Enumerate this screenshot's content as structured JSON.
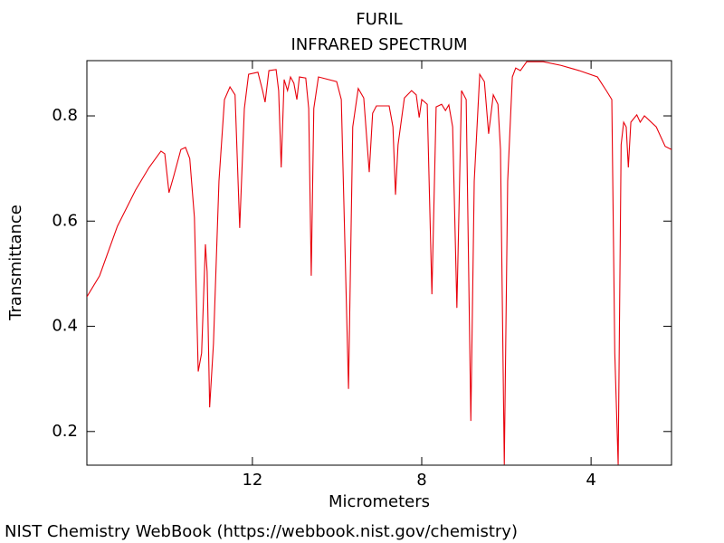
{
  "chart_data": {
    "type": "line",
    "title": "FURIL",
    "subtitle": "INFRARED SPECTRUM",
    "x_label": "Micrometers",
    "y_label": "Transmittance",
    "source": "NIST Chemistry WebBook (https://webbook.nist.gov/chemistry)",
    "xlim": [
      15.91,
      2.1
    ],
    "ylim": [
      0.136,
      0.905
    ],
    "xticks": [
      12,
      8,
      4
    ],
    "yticks": [
      0.2,
      0.4,
      0.6,
      0.8
    ],
    "grid": false,
    "series": [
      {
        "name": "Transmittance",
        "color": "#e8000b",
        "x": [
          15.91,
          15.61,
          15.19,
          14.76,
          14.44,
          14.16,
          14.07,
          13.97,
          13.86,
          13.69,
          13.58,
          13.48,
          13.37,
          13.28,
          13.2,
          13.11,
          13.07,
          13.01,
          12.92,
          12.79,
          12.66,
          12.53,
          12.41,
          12.3,
          12.19,
          12.09,
          11.87,
          11.76,
          11.7,
          11.61,
          11.44,
          11.38,
          11.32,
          11.25,
          11.17,
          11.1,
          11.02,
          10.95,
          10.89,
          10.74,
          10.67,
          10.61,
          10.55,
          10.44,
          10.01,
          9.9,
          9.73,
          9.63,
          9.5,
          9.37,
          9.24,
          9.16,
          9.07,
          8.77,
          8.68,
          8.62,
          8.56,
          8.41,
          8.24,
          8.13,
          8.06,
          8.0,
          7.87,
          7.76,
          7.66,
          7.53,
          7.44,
          7.36,
          7.27,
          7.17,
          7.06,
          6.95,
          6.84,
          6.76,
          6.63,
          6.52,
          6.42,
          6.31,
          6.2,
          6.14,
          6.05,
          5.97,
          5.86,
          5.78,
          5.67,
          5.52,
          5.13,
          4.71,
          4.28,
          3.85,
          3.64,
          3.51,
          3.44,
          3.36,
          3.29,
          3.23,
          3.17,
          3.12,
          3.06,
          2.92,
          2.84,
          2.74,
          2.46,
          2.25,
          2.1
        ],
        "values": [
          0.456,
          0.496,
          0.59,
          0.659,
          0.702,
          0.733,
          0.728,
          0.654,
          0.685,
          0.736,
          0.74,
          0.719,
          0.607,
          0.314,
          0.349,
          0.556,
          0.504,
          0.246,
          0.367,
          0.676,
          0.831,
          0.855,
          0.84,
          0.587,
          0.814,
          0.879,
          0.883,
          0.848,
          0.826,
          0.886,
          0.888,
          0.848,
          0.702,
          0.869,
          0.848,
          0.874,
          0.862,
          0.831,
          0.874,
          0.872,
          0.814,
          0.496,
          0.814,
          0.874,
          0.865,
          0.831,
          0.281,
          0.779,
          0.852,
          0.834,
          0.693,
          0.805,
          0.819,
          0.819,
          0.779,
          0.65,
          0.745,
          0.834,
          0.848,
          0.84,
          0.797,
          0.831,
          0.822,
          0.461,
          0.817,
          0.822,
          0.81,
          0.821,
          0.779,
          0.435,
          0.848,
          0.831,
          0.22,
          0.676,
          0.879,
          0.865,
          0.766,
          0.84,
          0.822,
          0.736,
          0.137,
          0.676,
          0.874,
          0.891,
          0.886,
          0.903,
          0.903,
          0.896,
          0.886,
          0.874,
          0.848,
          0.831,
          0.349,
          0.137,
          0.745,
          0.788,
          0.779,
          0.702,
          0.788,
          0.802,
          0.788,
          0.8,
          0.779,
          0.742,
          0.736
        ]
      }
    ]
  }
}
